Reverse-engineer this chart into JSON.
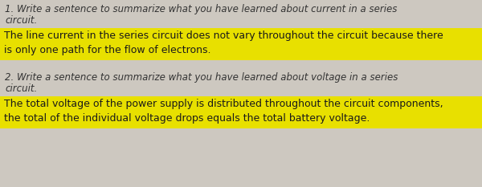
{
  "bg_color": "#cdc8c0",
  "highlight_color": "#e8e000",
  "text_color": "#1a1a1a",
  "q_text_color": "#333333",
  "font_size_question": 8.5,
  "font_size_answer": 9.0,
  "q1_text_line1": "1. Write a sentence to summarize what you have learned about current in a series",
  "q1_text_line2": "circuit.",
  "q1_answer_line1": "The line current in the series circuit does not vary throughout the circuit because there",
  "q1_answer_line2": "is only one path for the flow of electrons.",
  "q2_text_line1": "2. Write a sentence to summarize what you have learned about voltage in a series",
  "q2_text_line2": "circuit.",
  "q2_answer_line1": "The total voltage of the power supply is distributed throughout the circuit components,",
  "q2_answer_line2": "the total of the individual voltage drops equals the total battery voltage."
}
